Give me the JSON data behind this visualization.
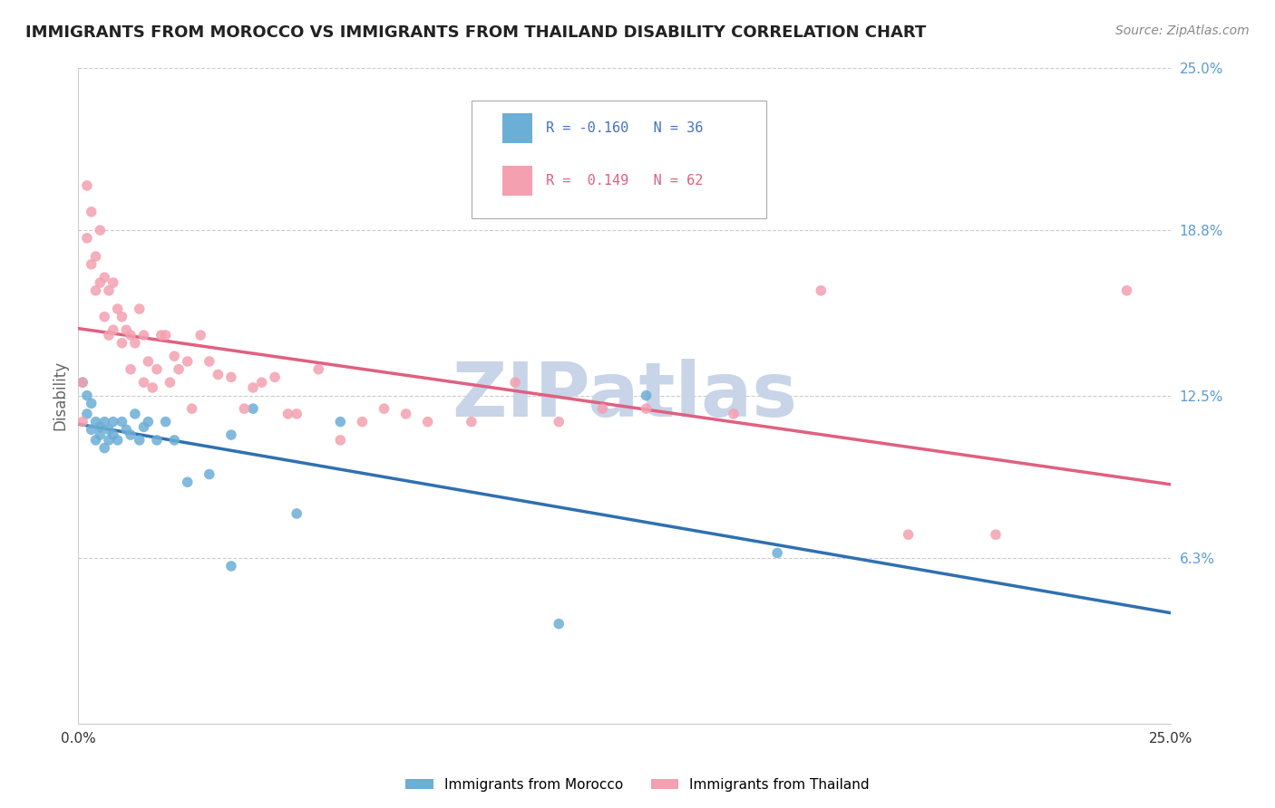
{
  "title": "IMMIGRANTS FROM MOROCCO VS IMMIGRANTS FROM THAILAND DISABILITY CORRELATION CHART",
  "source": "Source: ZipAtlas.com",
  "ylabel": "Disability",
  "watermark": "ZIPatlas",
  "series": [
    {
      "name": "Immigrants from Morocco",
      "color": "#6baed6",
      "trend_color": "#3070b0",
      "R": -0.16,
      "N": 36,
      "points_x": [
        0.001,
        0.002,
        0.002,
        0.003,
        0.003,
        0.004,
        0.004,
        0.005,
        0.005,
        0.006,
        0.006,
        0.007,
        0.007,
        0.008,
        0.008,
        0.009,
        0.01,
        0.011,
        0.012,
        0.013,
        0.014,
        0.015,
        0.016,
        0.018,
        0.02,
        0.022,
        0.025,
        0.03,
        0.035,
        0.04,
        0.05,
        0.06,
        0.13,
        0.16,
        0.035,
        0.11
      ],
      "points_y": [
        0.13,
        0.125,
        0.118,
        0.122,
        0.112,
        0.115,
        0.108,
        0.113,
        0.11,
        0.115,
        0.105,
        0.112,
        0.108,
        0.115,
        0.11,
        0.108,
        0.115,
        0.112,
        0.11,
        0.118,
        0.108,
        0.113,
        0.115,
        0.108,
        0.115,
        0.108,
        0.092,
        0.095,
        0.11,
        0.12,
        0.08,
        0.115,
        0.125,
        0.065,
        0.06,
        0.038
      ]
    },
    {
      "name": "Immigrants from Thailand",
      "color": "#f4a0b0",
      "trend_color": "#e06080",
      "R": 0.149,
      "N": 62,
      "points_x": [
        0.001,
        0.001,
        0.002,
        0.002,
        0.003,
        0.003,
        0.004,
        0.004,
        0.005,
        0.005,
        0.006,
        0.006,
        0.007,
        0.007,
        0.008,
        0.008,
        0.009,
        0.01,
        0.01,
        0.011,
        0.012,
        0.012,
        0.013,
        0.014,
        0.015,
        0.015,
        0.016,
        0.017,
        0.018,
        0.019,
        0.02,
        0.021,
        0.022,
        0.023,
        0.025,
        0.026,
        0.028,
        0.03,
        0.032,
        0.035,
        0.038,
        0.04,
        0.042,
        0.045,
        0.048,
        0.05,
        0.055,
        0.06,
        0.065,
        0.07,
        0.075,
        0.08,
        0.09,
        0.1,
        0.11,
        0.12,
        0.13,
        0.15,
        0.17,
        0.19,
        0.21,
        0.24
      ],
      "points_y": [
        0.13,
        0.115,
        0.205,
        0.185,
        0.195,
        0.175,
        0.178,
        0.165,
        0.188,
        0.168,
        0.17,
        0.155,
        0.165,
        0.148,
        0.168,
        0.15,
        0.158,
        0.155,
        0.145,
        0.15,
        0.148,
        0.135,
        0.145,
        0.158,
        0.148,
        0.13,
        0.138,
        0.128,
        0.135,
        0.148,
        0.148,
        0.13,
        0.14,
        0.135,
        0.138,
        0.12,
        0.148,
        0.138,
        0.133,
        0.132,
        0.12,
        0.128,
        0.13,
        0.132,
        0.118,
        0.118,
        0.135,
        0.108,
        0.115,
        0.12,
        0.118,
        0.115,
        0.115,
        0.13,
        0.115,
        0.12,
        0.12,
        0.118,
        0.165,
        0.072,
        0.072,
        0.165
      ]
    }
  ],
  "xlim": [
    0.0,
    0.25
  ],
  "ylim": [
    0.0,
    0.25
  ],
  "xtick_positions": [
    0.0,
    0.25
  ],
  "xtick_labels": [
    "0.0%",
    "25.0%"
  ],
  "ytick_values": [
    0.063,
    0.125,
    0.188,
    0.25
  ],
  "ytick_labels": [
    "6.3%",
    "12.5%",
    "18.8%",
    "25.0%"
  ],
  "grid_color": "#cccccc",
  "background_color": "#ffffff",
  "title_fontsize": 13,
  "source_fontsize": 10,
  "watermark_color": "#c8d4e8",
  "watermark_fontsize": 60,
  "legend_R_color_morocco": "#4472c4",
  "legend_R_color_thailand": "#e06080"
}
